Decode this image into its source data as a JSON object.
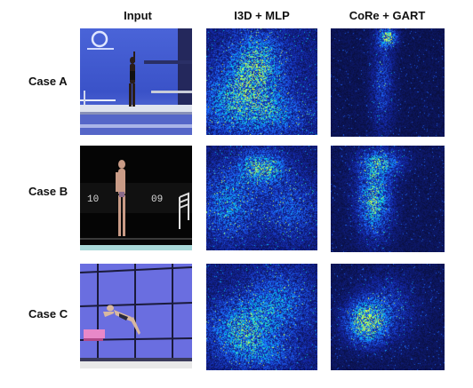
{
  "figure": {
    "columns": [
      {
        "label": "Input"
      },
      {
        "label": "I3D + MLP"
      },
      {
        "label": "CoRe + GART"
      }
    ],
    "rows": [
      {
        "label": "Case A"
      },
      {
        "label": "Case B"
      },
      {
        "label": "Case C"
      }
    ],
    "case_a_input": {
      "scoreboard_text": ""
    },
    "case_b_input": {
      "board_left": "10",
      "board_right": "09"
    }
  },
  "colors": {
    "heatmap_background": "#0a0f3a",
    "heatmap_low": "#1a3cff",
    "heatmap_mid": "#00c8ff",
    "heatmap_high": "#d8ff40",
    "case_a_sky": "#3a52c8",
    "case_b_bg": "#050505",
    "case_c_wall": "#6a6ee0"
  }
}
